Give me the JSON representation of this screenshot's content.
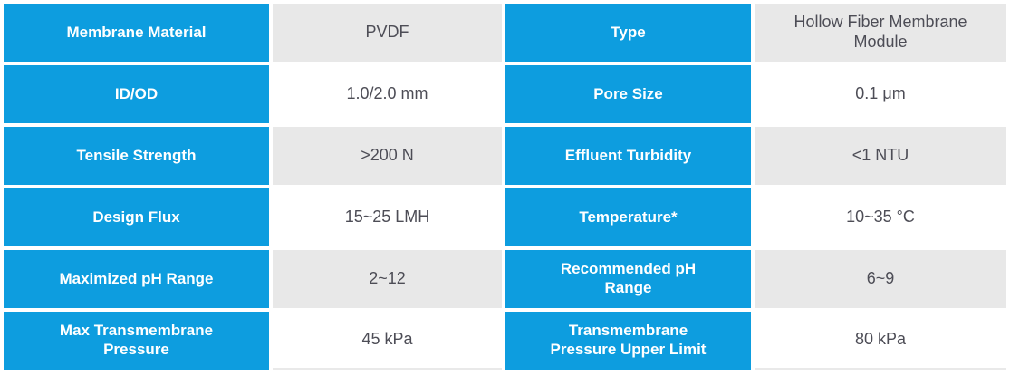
{
  "colors": {
    "accent_blue": "#0d9ddf",
    "value_row_alt_gray": "#e8e8e8",
    "value_text": "#4d4d56",
    "label_text": "#ffffff"
  },
  "table": {
    "description": "Membrane product specification table",
    "rows": [
      {
        "cells": [
          "Membrane Material",
          "PVDF",
          "Type",
          "Hollow Fiber Membrane\nModule"
        ]
      },
      {
        "cells": [
          "ID/OD",
          "1.0/2.0 mm",
          "Pore Size",
          "0.1 μm"
        ]
      },
      {
        "cells": [
          "Tensile Strength",
          ">200 N",
          "Effluent Turbidity",
          "<1 NTU"
        ]
      },
      {
        "cells": [
          "Design Flux",
          "15~25 LMH",
          "Temperature*",
          "10~35 °C"
        ]
      },
      {
        "cells": [
          "Maximized pH Range",
          "2~12",
          "Recommended pH\nRange",
          "6~9"
        ]
      },
      {
        "cells": [
          "Max Transmembrane\nPressure",
          "45 kPa",
          "Transmembrane\nPressure Upper Limit",
          "80 kPa"
        ]
      }
    ]
  }
}
